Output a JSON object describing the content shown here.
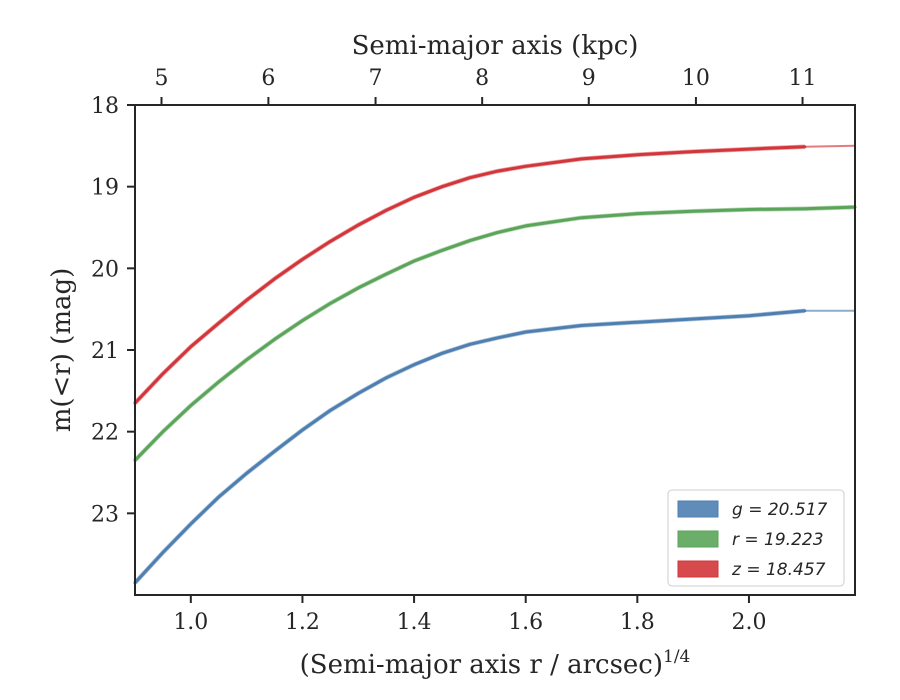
{
  "chart_data": {
    "type": "line",
    "xlabel": "(Semi-major axis r / arcsec)",
    "xlabel_superscript": "1/4",
    "ylabel": "m(<r) (mag)",
    "top_xlabel": "Semi-major axis (kpc)",
    "xlim": [
      0.9,
      2.19
    ],
    "ylim": [
      18,
      24
    ],
    "y_inverted": true,
    "x_ticks": [
      "1.0",
      "1.2",
      "1.4",
      "1.6",
      "1.8",
      "2.0"
    ],
    "y_ticks": [
      "18",
      "19",
      "20",
      "21",
      "22",
      "23"
    ],
    "top_x_ticks": [
      "5",
      "6",
      "7",
      "8",
      "9",
      "10",
      "11"
    ],
    "top_x_tick_positions_xunits": [
      0.9475,
      1.139,
      1.331,
      1.522,
      1.713,
      1.905,
      2.096
    ],
    "grid": false,
    "legend_position": "bottom-right",
    "series": [
      {
        "name": "g = 20.517",
        "color": "#4e7fb0",
        "x": [
          0.9,
          0.95,
          1.0,
          1.05,
          1.1,
          1.15,
          1.2,
          1.25,
          1.3,
          1.35,
          1.4,
          1.45,
          1.5,
          1.55,
          1.6,
          1.7,
          1.8,
          1.9,
          2.0,
          2.1
        ],
        "y": [
          23.85,
          23.48,
          23.13,
          22.8,
          22.51,
          22.24,
          21.98,
          21.74,
          21.53,
          21.34,
          21.18,
          21.04,
          20.93,
          20.85,
          20.78,
          20.7,
          20.66,
          20.62,
          20.58,
          20.52
        ],
        "extension": {
          "x": [
            2.1,
            2.19
          ],
          "y": [
            20.52,
            20.52
          ]
        }
      },
      {
        "name": "r = 19.223",
        "color": "#5aa55a",
        "x": [
          0.9,
          0.95,
          1.0,
          1.05,
          1.1,
          1.15,
          1.2,
          1.25,
          1.3,
          1.35,
          1.4,
          1.45,
          1.5,
          1.55,
          1.6,
          1.7,
          1.8,
          1.9,
          2.0,
          2.1,
          2.19
        ],
        "y": [
          22.35,
          22.0,
          21.68,
          21.39,
          21.12,
          20.87,
          20.64,
          20.43,
          20.24,
          20.07,
          19.91,
          19.78,
          19.66,
          19.56,
          19.48,
          19.38,
          19.33,
          19.3,
          19.28,
          19.27,
          19.25
        ],
        "extension": {
          "x": [
            2.1,
            2.19
          ],
          "y": [
            19.27,
            19.25
          ]
        }
      },
      {
        "name": "z = 18.457",
        "color": "#d2363a",
        "x": [
          0.9,
          0.95,
          1.0,
          1.05,
          1.1,
          1.15,
          1.2,
          1.25,
          1.3,
          1.35,
          1.4,
          1.45,
          1.5,
          1.55,
          1.6,
          1.7,
          1.8,
          1.9,
          2.0,
          2.1
        ],
        "y": [
          21.65,
          21.29,
          20.96,
          20.67,
          20.39,
          20.13,
          19.89,
          19.67,
          19.47,
          19.29,
          19.13,
          19.0,
          18.89,
          18.81,
          18.75,
          18.66,
          18.61,
          18.57,
          18.54,
          18.51
        ],
        "extension": {
          "x": [
            2.1,
            2.19
          ],
          "y": [
            18.51,
            18.5
          ]
        }
      }
    ]
  },
  "legend": {
    "entries": [
      "g = 20.517",
      "r = 19.223",
      "z = 18.457"
    ]
  }
}
